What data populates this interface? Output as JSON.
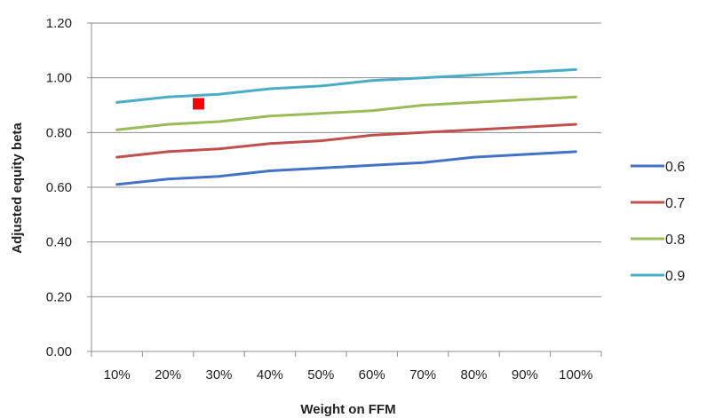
{
  "chart_data": {
    "type": "line",
    "xlabel": "Weight on FFM",
    "ylabel": "Adjusted equity beta",
    "categories": [
      "10%",
      "20%",
      "30%",
      "40%",
      "50%",
      "60%",
      "70%",
      "80%",
      "90%",
      "100%"
    ],
    "x_values": [
      10,
      20,
      30,
      40,
      50,
      60,
      70,
      80,
      90,
      100
    ],
    "ylim": [
      0,
      1.2
    ],
    "yticks": [
      "0.00",
      "0.20",
      "0.40",
      "0.60",
      "0.80",
      "1.00",
      "1.20"
    ],
    "grid": "horizontal",
    "legend_position": "right",
    "series": [
      {
        "name": "0.6",
        "color": "#4472C4",
        "values": [
          0.61,
          0.63,
          0.64,
          0.66,
          0.67,
          0.68,
          0.69,
          0.71,
          0.72,
          0.73
        ]
      },
      {
        "name": "0.7",
        "color": "#C0504D",
        "values": [
          0.71,
          0.73,
          0.74,
          0.76,
          0.77,
          0.79,
          0.8,
          0.81,
          0.82,
          0.83
        ]
      },
      {
        "name": "0.8",
        "color": "#9BBB59",
        "values": [
          0.81,
          0.83,
          0.84,
          0.86,
          0.87,
          0.88,
          0.9,
          0.91,
          0.92,
          0.93
        ]
      },
      {
        "name": "0.9",
        "color": "#4BACC6",
        "values": [
          0.91,
          0.93,
          0.94,
          0.96,
          0.97,
          0.99,
          1.0,
          1.01,
          1.02,
          1.03
        ]
      }
    ],
    "marker": {
      "x": 26,
      "y": 0.905,
      "color": "#FF0000",
      "shape": "square"
    }
  }
}
